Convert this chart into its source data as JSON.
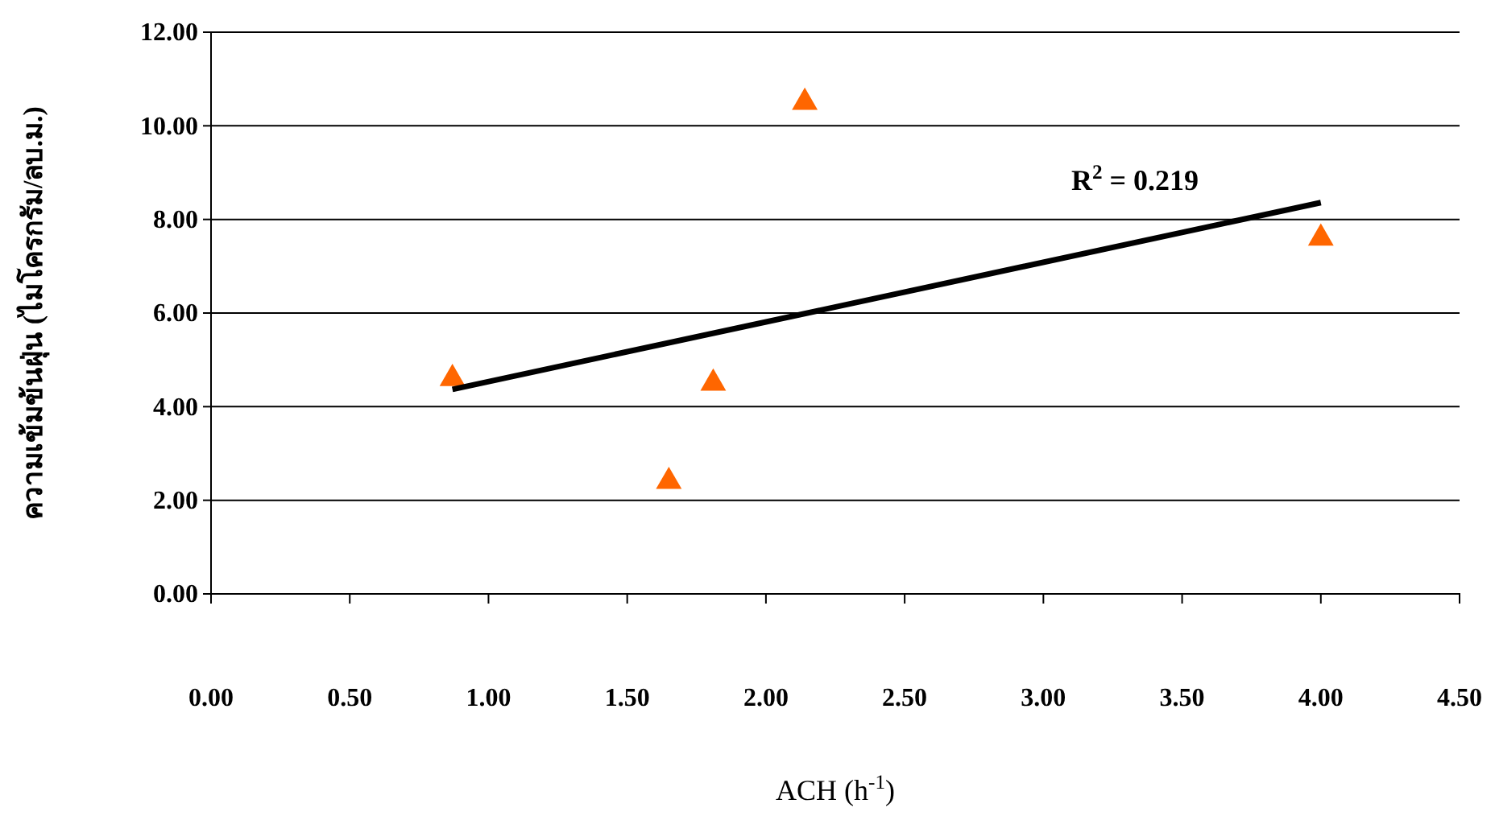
{
  "chart_data": {
    "type": "scatter",
    "xlabel": "ACH (h$^{-1}$)",
    "ylabel": "ความเข้มข้นฝุ่น (ไมโครกรัม/ลบ.ม.)",
    "series": [
      {
        "type": "scatter",
        "color": "#ff6600",
        "marker": "triangle",
        "x": [
          0.87,
          1.65,
          1.81,
          2.14,
          4.0
        ],
        "values": [
          4.6,
          2.4,
          4.5,
          10.5,
          7.6
        ]
      },
      {
        "type": "line",
        "color": "#000000",
        "x": [
          0.87,
          4.0
        ],
        "values": [
          4.37,
          8.36
        ]
      }
    ],
    "annotations": [
      "R$^{2}$ = 0.219"
    ],
    "xlim": [
      0,
      4.5
    ],
    "xticks": [
      {
        "value": 0,
        "label": "0.00"
      },
      {
        "value": 0.5,
        "label": "0.50"
      },
      {
        "value": 1,
        "label": "1.00"
      },
      {
        "value": 1.5,
        "label": "1.50"
      },
      {
        "value": 2,
        "label": "2.00"
      },
      {
        "value": 2.5,
        "label": "2.50"
      },
      {
        "value": 3,
        "label": "3.00"
      },
      {
        "value": 3.5,
        "label": "3.50"
      },
      {
        "value": 4,
        "label": "4.00"
      },
      {
        "value": 4.5,
        "label": "4.50"
      }
    ],
    "ylim": [
      0,
      12
    ],
    "yticks": [
      {
        "value": 0,
        "label": "0.00"
      },
      {
        "value": 2,
        "label": "2.00"
      },
      {
        "value": 4,
        "label": "4.00"
      },
      {
        "value": 6,
        "label": "6.00"
      },
      {
        "value": 8,
        "label": "8.00"
      },
      {
        "value": 10,
        "label": "10.00"
      },
      {
        "value": 12,
        "label": "12.00"
      }
    ],
    "grid": "y"
  }
}
